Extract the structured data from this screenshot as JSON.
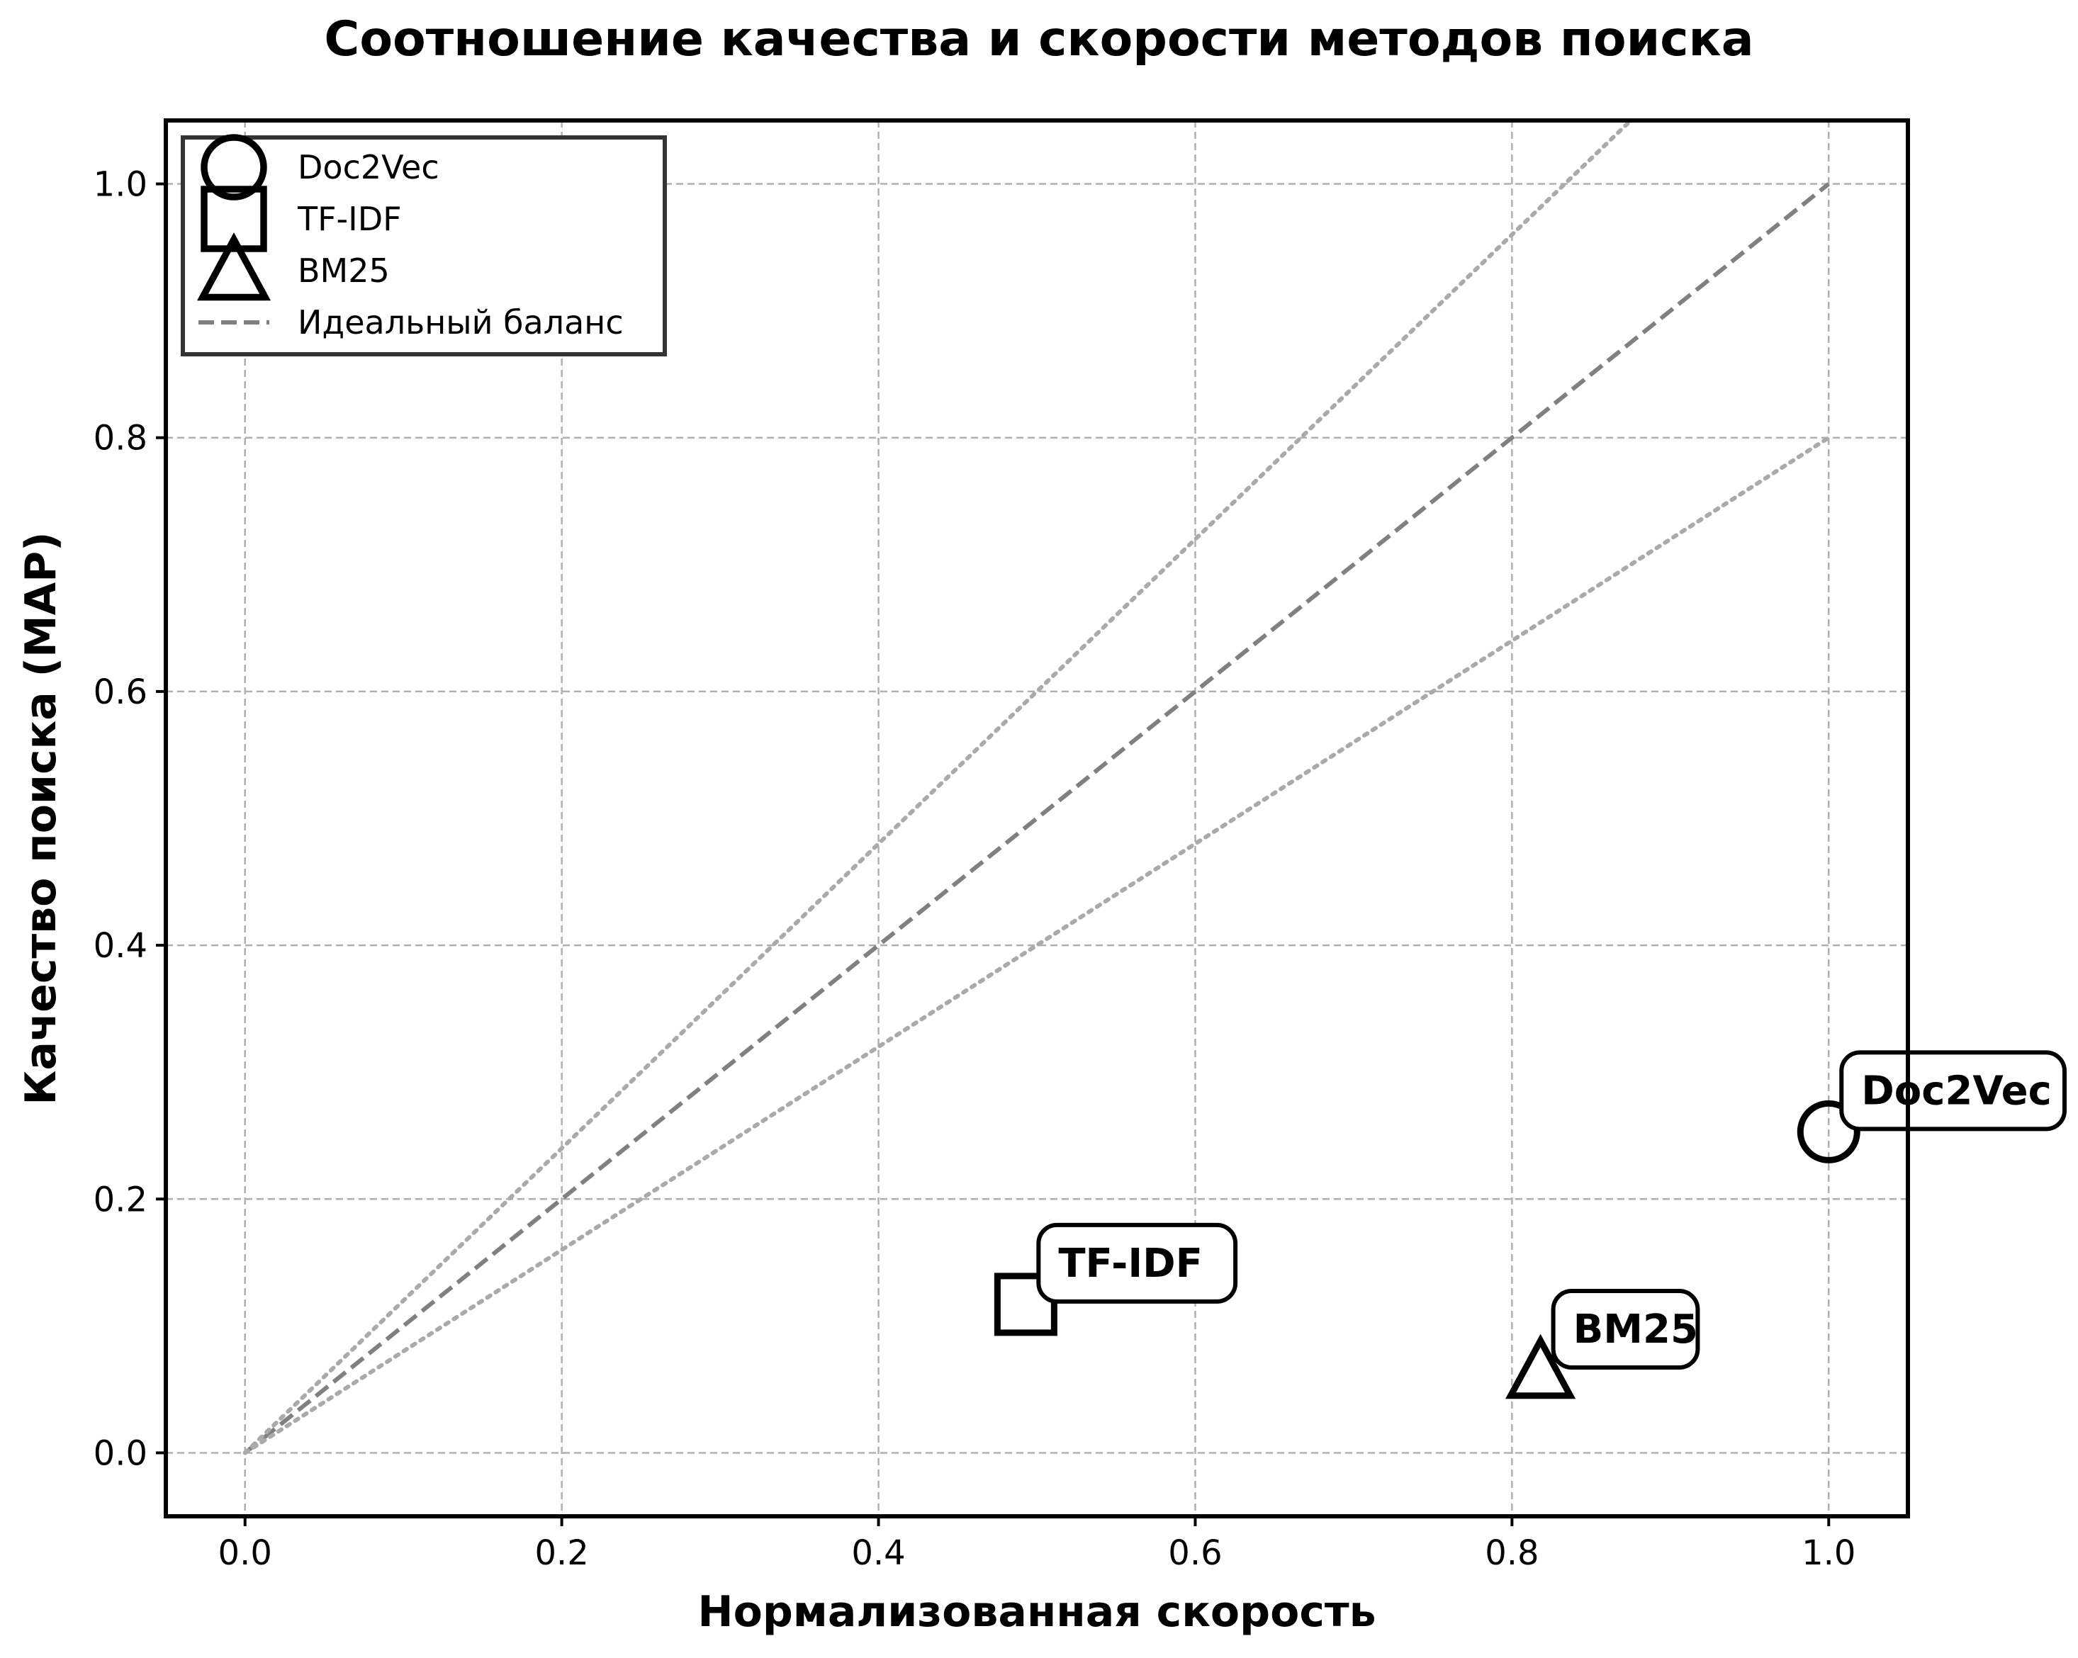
{
  "chart_data": {
    "type": "scatter",
    "title": "Соотношение качества и скорости методов поиска",
    "xlabel": "Нормализованная скорость",
    "ylabel": "Качество поиска (MAP)",
    "xlim": [
      -0.05,
      1.05
    ],
    "ylim": [
      -0.05,
      1.05
    ],
    "xticks": [
      0.0,
      0.2,
      0.4,
      0.6,
      0.8,
      1.0
    ],
    "yticks": [
      0.0,
      0.2,
      0.4,
      0.6,
      0.8,
      1.0
    ],
    "xtick_labels": [
      "0.0",
      "0.2",
      "0.4",
      "0.6",
      "0.8",
      "1.0"
    ],
    "ytick_labels": [
      "0.0",
      "0.2",
      "0.4",
      "0.6",
      "0.8",
      "1.0"
    ],
    "grid": true,
    "legend_position": "top-left",
    "series": [
      {
        "name": "Doc2Vec",
        "marker": "circle",
        "x": 1.0,
        "y": 0.253,
        "label": "Doc2Vec"
      },
      {
        "name": "TF-IDF",
        "marker": "square",
        "x": 0.493,
        "y": 0.117,
        "label": "TF-IDF"
      },
      {
        "name": "BM25",
        "marker": "triangle",
        "x": 0.818,
        "y": 0.065,
        "label": "BM25"
      }
    ],
    "reference_lines": [
      {
        "name": "Идеальный баланс",
        "style": "dashed",
        "slope": 1.0,
        "in_legend": true
      },
      {
        "name": "upper-band",
        "style": "dotted",
        "slope": 1.2,
        "in_legend": false
      },
      {
        "name": "lower-band",
        "style": "dotted",
        "slope": 0.8,
        "in_legend": false
      }
    ],
    "legend": [
      "Doc2Vec",
      "TF-IDF",
      "BM25",
      "Идеальный баланс"
    ]
  }
}
